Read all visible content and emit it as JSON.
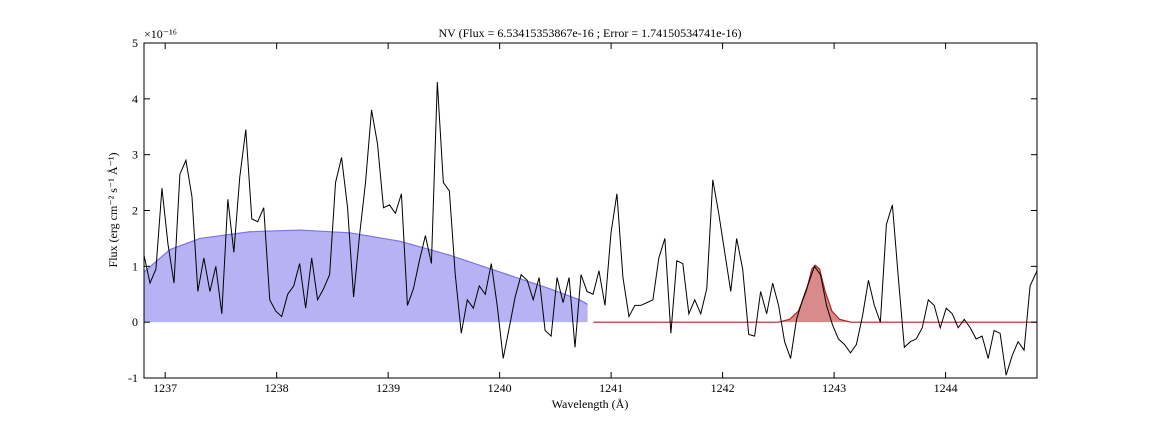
{
  "chart_data": {
    "type": "line",
    "title": "NV (Flux = 6.53415353867e-16 ; Error = 1.74150534741e-16)",
    "x_label": "Wavelength (Å)",
    "y_label": "Flux (erg cm⁻² s⁻¹ Å⁻¹)",
    "y_offset_label": "×10⁻¹⁶",
    "xlim": [
      1236.81,
      1244.82
    ],
    "xticks": [
      1237,
      1238,
      1239,
      1240,
      1241,
      1242,
      1243,
      1244
    ],
    "ylim": [
      -1,
      5
    ],
    "yticks": [
      -1,
      0,
      1,
      2,
      3,
      4,
      5
    ],
    "series": [
      {
        "color": "#7b73e8",
        "fill": "#b6b2f4",
        "x": [
          1236.81,
          1237.043,
          1237.312,
          1237.76,
          1238.208,
          1238.656,
          1239.104,
          1239.552,
          1240.0,
          1240.448,
          1240.717,
          1240.789
        ],
        "values": [
          0.9,
          1.3,
          1.5,
          1.62,
          1.65,
          1.6,
          1.45,
          1.2,
          0.9,
          0.6,
          0.4,
          0.32
        ]
      },
      {
        "color": "#b22222",
        "fill": "#d98a8a",
        "x": [
          1240.842,
          1242.5,
          1242.6,
          1242.68,
          1242.75,
          1242.8,
          1242.83,
          1242.87,
          1242.92,
          1242.98,
          1243.05,
          1243.15,
          1244.82
        ],
        "values": [
          0,
          0,
          0.05,
          0.2,
          0.55,
          0.95,
          1.02,
          0.95,
          0.55,
          0.2,
          0.05,
          0,
          0
        ]
      },
      {
        "color": "#000000",
        "x": [
          1236.81,
          1236.864,
          1236.917,
          1236.971,
          1237.025,
          1237.079,
          1237.132,
          1237.186,
          1237.24,
          1237.293,
          1237.347,
          1237.401,
          1237.454,
          1237.508,
          1237.562,
          1237.616,
          1237.669,
          1237.723,
          1237.777,
          1237.83,
          1237.884,
          1237.938,
          1237.991,
          1238.045,
          1238.099,
          1238.153,
          1238.206,
          1238.26,
          1238.314,
          1238.367,
          1238.421,
          1238.475,
          1238.528,
          1238.582,
          1238.636,
          1238.69,
          1238.743,
          1238.797,
          1238.851,
          1238.904,
          1238.958,
          1239.012,
          1239.065,
          1239.119,
          1239.173,
          1239.227,
          1239.28,
          1239.334,
          1239.388,
          1239.441,
          1239.495,
          1239.549,
          1239.602,
          1239.656,
          1239.71,
          1239.764,
          1239.817,
          1239.871,
          1239.925,
          1239.978,
          1240.032,
          1240.086,
          1240.139,
          1240.193,
          1240.247,
          1240.301,
          1240.354,
          1240.408,
          1240.462,
          1240.515,
          1240.569,
          1240.623,
          1240.676,
          1240.73,
          1240.784,
          1240.838,
          1240.891,
          1240.945,
          1240.999,
          1241.052,
          1241.106,
          1241.16,
          1241.213,
          1241.267,
          1241.321,
          1241.375,
          1241.428,
          1241.482,
          1241.536,
          1241.589,
          1241.643,
          1241.697,
          1241.75,
          1241.804,
          1241.858,
          1241.912,
          1241.965,
          1242.019,
          1242.073,
          1242.126,
          1242.18,
          1242.234,
          1242.287,
          1242.341,
          1242.395,
          1242.449,
          1242.502,
          1242.556,
          1242.61,
          1242.663,
          1242.717,
          1242.771,
          1242.824,
          1242.878,
          1242.932,
          1242.986,
          1243.039,
          1243.093,
          1243.147,
          1243.2,
          1243.254,
          1243.308,
          1243.361,
          1243.415,
          1243.469,
          1243.523,
          1243.576,
          1243.63,
          1243.684,
          1243.737,
          1243.791,
          1243.845,
          1243.898,
          1243.952,
          1244.006,
          1244.06,
          1244.113,
          1244.167,
          1244.221,
          1244.274,
          1244.328,
          1244.382,
          1244.435,
          1244.489,
          1244.543,
          1244.597,
          1244.65,
          1244.704,
          1244.758,
          1244.82
        ],
        "values": [
          1.2,
          0.7,
          0.95,
          2.4,
          1.4,
          0.7,
          2.65,
          2.9,
          2.25,
          0.55,
          1.15,
          0.55,
          1.0,
          0.15,
          2.2,
          1.25,
          2.6,
          3.45,
          1.85,
          1.8,
          2.05,
          0.4,
          0.2,
          0.1,
          0.5,
          0.65,
          1.05,
          0.25,
          1.15,
          0.4,
          0.6,
          0.85,
          2.5,
          2.95,
          2.05,
          0.45,
          1.55,
          2.5,
          3.8,
          3.2,
          2.05,
          2.1,
          1.95,
          2.3,
          0.3,
          0.6,
          1.1,
          1.55,
          1.05,
          4.3,
          2.5,
          2.35,
          0.85,
          -0.2,
          0.4,
          0.25,
          0.65,
          0.5,
          1.05,
          0.3,
          -0.65,
          -0.1,
          0.45,
          0.85,
          0.75,
          0.4,
          0.8,
          -0.15,
          -0.25,
          0.8,
          0.35,
          0.8,
          -0.45,
          0.85,
          0.55,
          0.5,
          0.92,
          0.3,
          1.6,
          2.3,
          0.8,
          0.1,
          0.3,
          0.3,
          0.35,
          0.4,
          1.15,
          1.5,
          -0.2,
          1.1,
          1.05,
          0.15,
          0.4,
          0.15,
          0.6,
          2.55,
          1.95,
          1.25,
          0.55,
          1.5,
          0.95,
          -0.22,
          -0.25,
          0.55,
          0.15,
          0.7,
          0.3,
          -0.35,
          -0.65,
          0.05,
          0.4,
          0.7,
          1.0,
          0.85,
          0.3,
          -0.05,
          -0.3,
          -0.4,
          -0.55,
          -0.4,
          0.1,
          0.75,
          0.3,
          0.0,
          1.75,
          2.1,
          0.8,
          -0.45,
          -0.35,
          -0.3,
          -0.1,
          0.4,
          0.3,
          -0.1,
          0.25,
          0.15,
          -0.1,
          0.05,
          -0.1,
          -0.3,
          -0.25,
          -0.65,
          -0.15,
          -0.2,
          -0.95,
          -0.6,
          -0.35,
          -0.5,
          0.65,
          0.92
        ]
      }
    ]
  }
}
